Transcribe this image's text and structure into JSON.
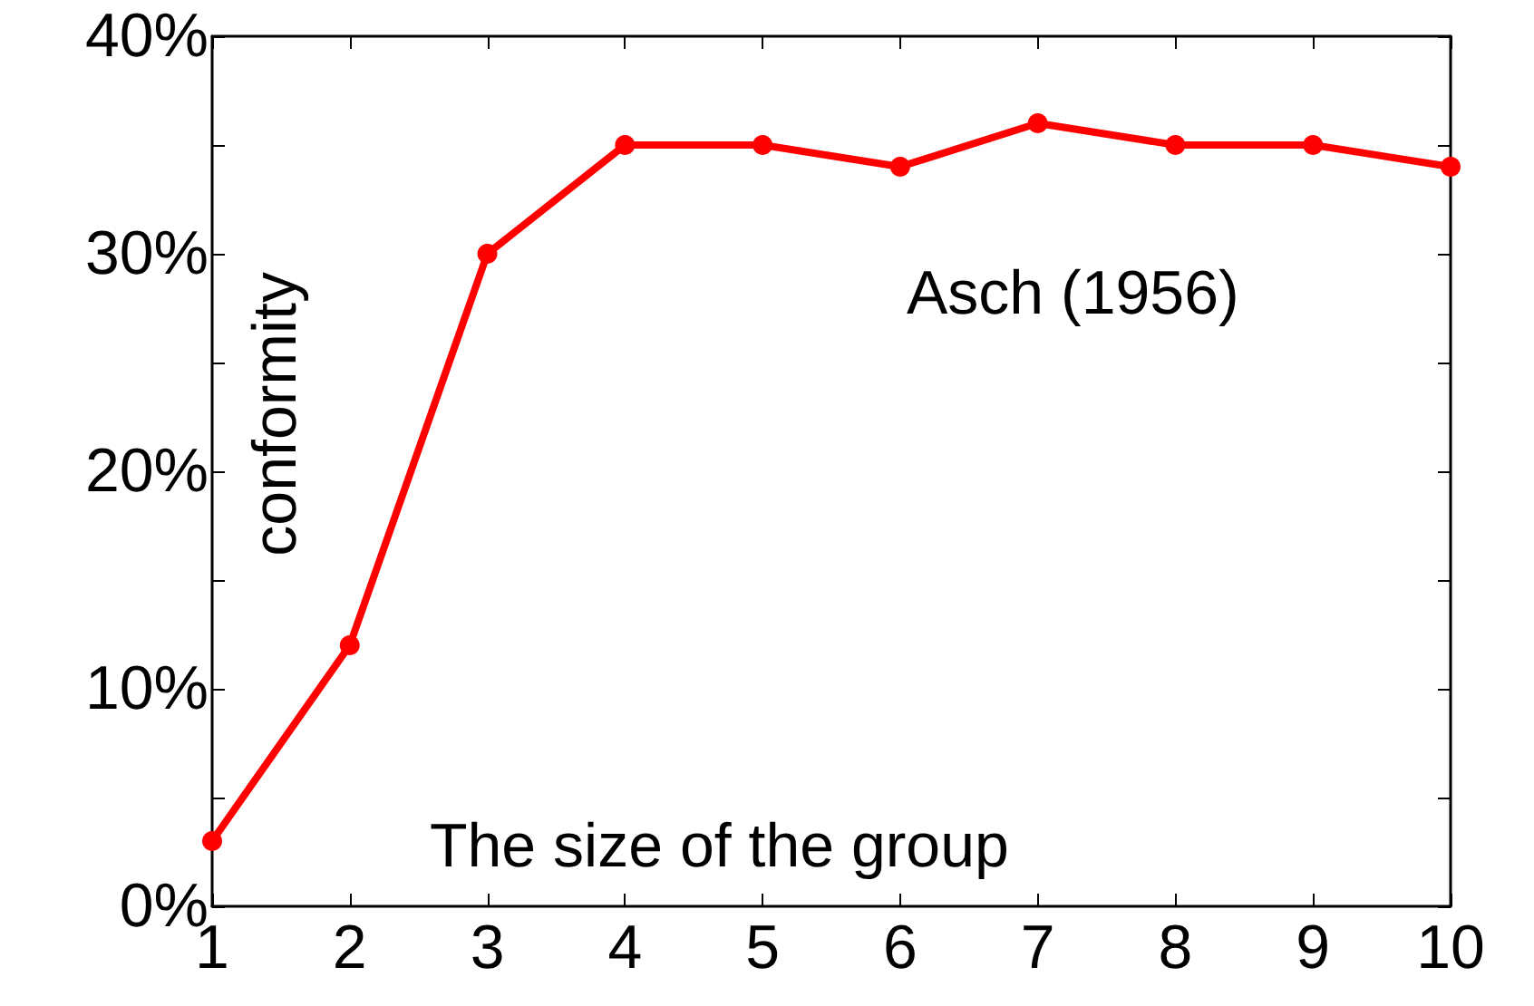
{
  "chart_data": {
    "type": "line",
    "xlabel": "The size of the group",
    "ylabel": "conformity",
    "annotations": [
      "Asch (1956)"
    ],
    "x": [
      1,
      2,
      3,
      4,
      5,
      6,
      7,
      8,
      9,
      10
    ],
    "series": [
      {
        "color": "#ff0000",
        "values": [
          3,
          12,
          30,
          35,
          35,
          34,
          36,
          35,
          35,
          34
        ]
      }
    ],
    "xlim": [
      1,
      10
    ],
    "xticks": [
      1,
      2,
      3,
      4,
      5,
      6,
      7,
      8,
      9,
      10
    ],
    "ylim": [
      0,
      40
    ],
    "yticks": [
      {
        "value": 0,
        "label": "0%"
      },
      {
        "value": 5,
        "label": null
      },
      {
        "value": 10,
        "label": "10%"
      },
      {
        "value": 15,
        "label": null
      },
      {
        "value": 20,
        "label": "20%"
      },
      {
        "value": 25,
        "label": null
      },
      {
        "value": 30,
        "label": "30%"
      },
      {
        "value": 35,
        "label": null
      },
      {
        "value": 40,
        "label": "40%"
      }
    ],
    "marker": "circle",
    "line_style": "solid"
  }
}
